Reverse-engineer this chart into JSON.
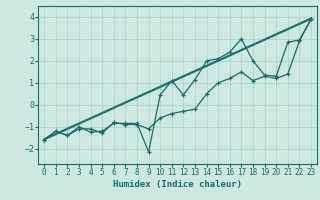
{
  "title": "",
  "xlabel": "Humidex (Indice chaleur)",
  "xlim": [
    -0.5,
    23.5
  ],
  "ylim": [
    -2.7,
    4.5
  ],
  "xticks": [
    0,
    1,
    2,
    3,
    4,
    5,
    6,
    7,
    8,
    9,
    10,
    11,
    12,
    13,
    14,
    15,
    16,
    17,
    18,
    19,
    20,
    21,
    22,
    23
  ],
  "yticks": [
    -2,
    -1,
    0,
    1,
    2,
    3,
    4
  ],
  "bg_color": "#cce8e0",
  "line_color": "#1a6e6a",
  "grid_color": "#aacfc8",
  "s1_x": [
    0,
    1,
    2,
    3,
    4,
    5,
    6,
    7,
    8,
    9,
    10,
    11,
    12,
    13,
    14,
    15,
    16,
    17,
    18,
    19,
    20,
    21,
    22,
    23
  ],
  "s1_y": [
    -1.6,
    -1.2,
    -1.4,
    -1.1,
    -1.1,
    -1.3,
    -0.8,
    -0.9,
    -0.9,
    -1.1,
    -0.6,
    -0.4,
    -0.3,
    -0.2,
    0.5,
    1.0,
    1.2,
    1.5,
    1.1,
    1.3,
    1.2,
    1.4,
    2.9,
    3.9
  ],
  "s2_x": [
    0,
    1,
    2,
    3,
    4,
    5,
    6,
    7,
    8,
    9,
    10,
    11,
    12,
    13,
    14,
    15,
    16,
    17,
    18,
    19,
    20,
    21,
    22,
    23
  ],
  "s2_y": [
    -1.6,
    -1.2,
    -1.4,
    -1.0,
    -1.25,
    -1.2,
    -0.85,
    -0.85,
    -0.85,
    -2.15,
    0.45,
    1.1,
    0.45,
    1.15,
    2.0,
    2.1,
    2.4,
    3.0,
    2.0,
    1.35,
    1.3,
    2.85,
    2.95,
    3.9
  ],
  "trend1_x": [
    0,
    23
  ],
  "trend1_y": [
    -1.6,
    3.9
  ],
  "trend2_x": [
    0,
    23
  ],
  "trend2_y": [
    -1.55,
    3.95
  ],
  "tick_fontsize": 5.5,
  "xlabel_fontsize": 6.5
}
